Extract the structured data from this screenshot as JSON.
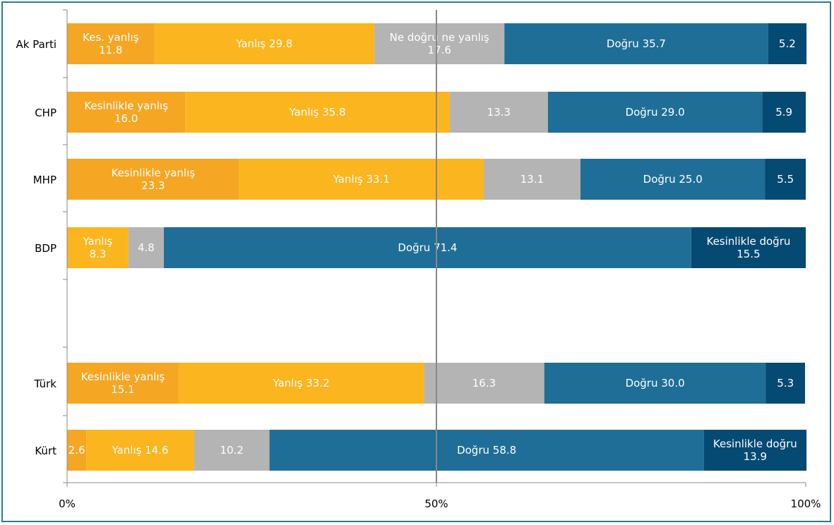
{
  "chart_data": {
    "type": "bar",
    "orientation": "horizontal",
    "stacked": true,
    "normalized": true,
    "xlim": [
      0,
      100
    ],
    "x_ticks": [
      "0%",
      "50%",
      "100%"
    ],
    "grid": "vertical line at 50%",
    "categories": [
      "Ak Parti",
      "CHP",
      "MHP",
      "BDP",
      "",
      "Türk",
      "Kürt"
    ],
    "bars": [
      {
        "category": "Ak Parti",
        "segments": [
          {
            "level": 0,
            "value": 11.8,
            "label": [
              "Kes. yanlış",
              "11.8"
            ]
          },
          {
            "level": 1,
            "value": 29.8,
            "label": [
              "Yanlış 29.8"
            ]
          },
          {
            "level": 2,
            "value": 17.6,
            "label": [
              "Ne doğru ne yanlış",
              "17.6"
            ]
          },
          {
            "level": 3,
            "value": 35.7,
            "label": [
              "Doğru 35.7"
            ]
          },
          {
            "level": 4,
            "value": 5.2,
            "label": [
              "5.2"
            ]
          }
        ]
      },
      {
        "category": "CHP",
        "segments": [
          {
            "level": 0,
            "value": 16.0,
            "label": [
              "Kesinlikle yanlış",
              "16.0"
            ]
          },
          {
            "level": 1,
            "value": 35.8,
            "label": [
              "Yanlış 35.8"
            ]
          },
          {
            "level": 2,
            "value": 13.3,
            "label": [
              "13.3"
            ]
          },
          {
            "level": 3,
            "value": 29.0,
            "label": [
              "Doğru 29.0"
            ]
          },
          {
            "level": 4,
            "value": 5.9,
            "label": [
              "5.9"
            ]
          }
        ]
      },
      {
        "category": "MHP",
        "segments": [
          {
            "level": 0,
            "value": 23.3,
            "label": [
              "Kesinlikle yanlış",
              "23.3"
            ]
          },
          {
            "level": 1,
            "value": 33.1,
            "label": [
              "Yanlış 33.1"
            ]
          },
          {
            "level": 2,
            "value": 13.1,
            "label": [
              "13.1"
            ]
          },
          {
            "level": 3,
            "value": 25.0,
            "label": [
              "Doğru 25.0"
            ]
          },
          {
            "level": 4,
            "value": 5.5,
            "label": [
              "5.5"
            ]
          }
        ]
      },
      {
        "category": "BDP",
        "segments": [
          {
            "level": 1,
            "value": 8.3,
            "label": [
              "Yanlış",
              "8.3"
            ]
          },
          {
            "level": 2,
            "value": 4.8,
            "label": [
              "4.8"
            ]
          },
          {
            "level": 3,
            "value": 71.4,
            "label": [
              "Doğru 71.4"
            ]
          },
          {
            "level": 4,
            "value": 15.5,
            "label": [
              "Kesinlikle doğru",
              "15.5"
            ]
          }
        ]
      },
      {
        "category": "",
        "segments": []
      },
      {
        "category": "Türk",
        "segments": [
          {
            "level": 0,
            "value": 15.1,
            "label": [
              "Kesinlikle yanlış",
              "15.1"
            ]
          },
          {
            "level": 1,
            "value": 33.2,
            "label": [
              "Yanlış 33.2"
            ]
          },
          {
            "level": 2,
            "value": 16.3,
            "label": [
              "16.3"
            ]
          },
          {
            "level": 3,
            "value": 30.0,
            "label": [
              "Doğru 30.0"
            ]
          },
          {
            "level": 4,
            "value": 5.3,
            "label": [
              "5.3"
            ]
          }
        ]
      },
      {
        "category": "Kürt",
        "segments": [
          {
            "level": 0,
            "value": 2.6,
            "label": [
              "2.6"
            ]
          },
          {
            "level": 1,
            "value": 14.6,
            "label": [
              "Yanlış 14.6"
            ]
          },
          {
            "level": 2,
            "value": 10.2,
            "label": [
              "10.2"
            ]
          },
          {
            "level": 3,
            "value": 58.8,
            "label": [
              "Doğru 58.8"
            ]
          },
          {
            "level": 4,
            "value": 13.9,
            "label": [
              "Kesinlikle doğru",
              "13.9"
            ]
          }
        ]
      }
    ],
    "level_colors": [
      "#f5a623",
      "#fbb51e",
      "#b4b4b4",
      "#1f6e97",
      "#054a73"
    ],
    "axis_color": "#888888",
    "gridline_color": "#888888",
    "border_color": "#2e7a92"
  }
}
